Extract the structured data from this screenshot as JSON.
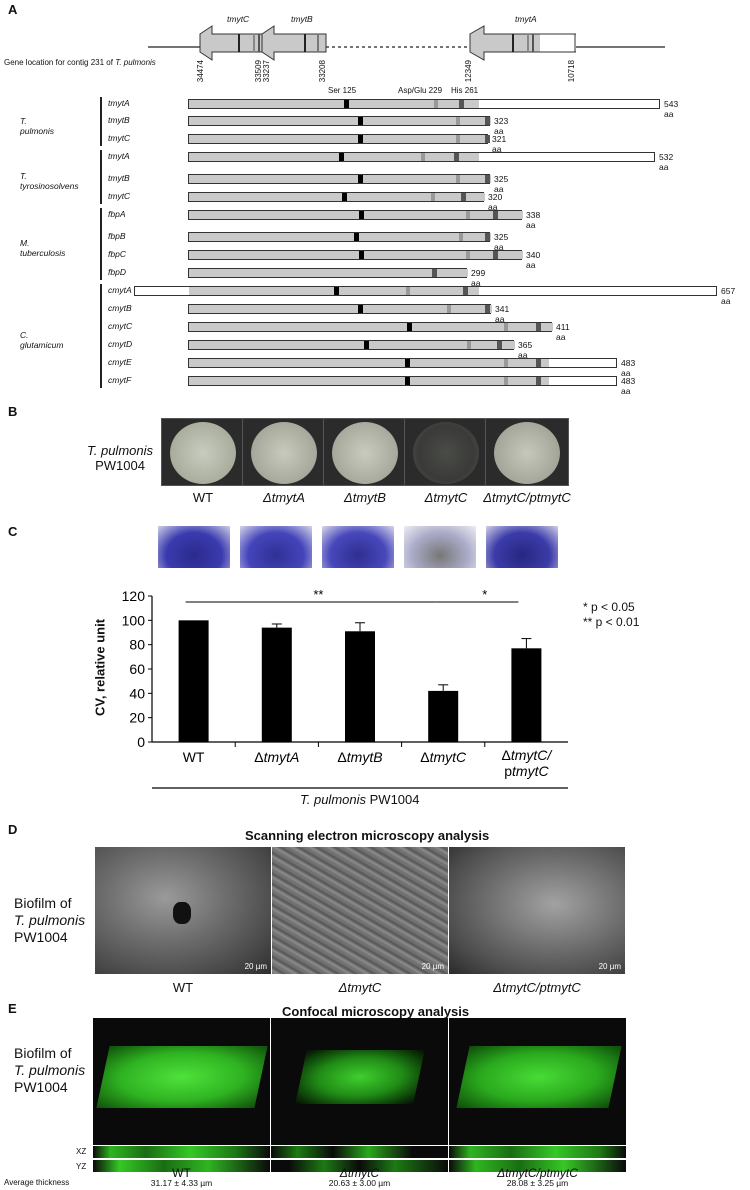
{
  "panelA": {
    "label": "A",
    "contig_caption_prefix": "Gene location for contig 231 of ",
    "contig_caption_species": "T. pulmonis",
    "contig_genes": [
      "tmytC",
      "tmytB",
      "tmytA"
    ],
    "coordinates": [
      "34474",
      "33509",
      "33237",
      "33208",
      "12349",
      "10718"
    ],
    "domain_labels": {
      "ser": "Ser 125",
      "asp": "Asp/Glu 229",
      "his": "His 261"
    },
    "groups": [
      {
        "organism": "T. pulmonis",
        "genes": [
          {
            "name": "tmytA",
            "length": "543 aa"
          },
          {
            "name": "tmytB",
            "length": "323 aa"
          },
          {
            "name": "tmytC",
            "length": "321 aa"
          }
        ]
      },
      {
        "organism": "T. tyrosinosolvens",
        "genes": [
          {
            "name": "tmytA",
            "length": "532 aa"
          },
          {
            "name": "tmytB",
            "length": "325 aa"
          },
          {
            "name": "tmytC",
            "length": "320 aa"
          }
        ]
      },
      {
        "organism": "M. tuberculosis",
        "genes": [
          {
            "name": "fbpA",
            "length": "338 aa"
          },
          {
            "name": "fbpB",
            "length": "325 aa"
          },
          {
            "name": "fbpC",
            "length": "340 aa"
          },
          {
            "name": "fbpD",
            "length": "299 aa"
          }
        ]
      },
      {
        "organism": "C. glutamicum",
        "genes": [
          {
            "name": "cmytA",
            "length": "657 aa"
          },
          {
            "name": "cmytB",
            "length": "341 aa"
          },
          {
            "name": "cmytC",
            "length": "411 aa"
          },
          {
            "name": "cmytD",
            "length": "365 aa"
          },
          {
            "name": "cmytE",
            "length": "483 aa"
          },
          {
            "name": "cmytF",
            "length": "483 aa"
          }
        ]
      }
    ]
  },
  "panelB": {
    "label": "B",
    "species": "T. pulmonis",
    "strain": "PW1004",
    "plates": [
      "WT",
      "ΔtmytA",
      "ΔtmytB",
      "ΔtmytC",
      "ΔtmytC/ptmytC"
    ]
  },
  "panelC": {
    "label": "C",
    "ylabel": "CV, relative unit",
    "xlabel_species": "T. pulmonis",
    "xlabel_strain": "PW1004",
    "sig1": "**",
    "sig2": "*",
    "legend1": "* p < 0.05",
    "legend2": "** p < 0.01"
  },
  "chart_data": {
    "type": "bar",
    "categories": [
      "WT",
      "ΔtmytA",
      "ΔtmytB",
      "ΔtmytC",
      "ΔtmytC/ptmytC"
    ],
    "values": [
      100,
      94,
      91,
      42,
      77
    ],
    "errors": [
      0,
      3,
      7,
      5,
      8
    ],
    "ylabel": "CV, relative unit",
    "xlabel": "T. pulmonis PW1004",
    "ylim": [
      0,
      120
    ],
    "yticks": [
      "0",
      "20",
      "40",
      "60",
      "80",
      "100",
      "120"
    ],
    "grid": false,
    "significance": [
      {
        "from": "WT",
        "to": "ΔtmytC",
        "label": "**"
      },
      {
        "from": "ΔtmytC",
        "to": "ΔtmytC/ptmytC",
        "label": "*"
      }
    ]
  },
  "panelD": {
    "label": "D",
    "title": "Scanning electron microscopy analysis",
    "side_line1": "Biofilm of",
    "side_line2": "T. pulmonis",
    "side_line3": "PW1004",
    "scale": "20 µm",
    "images": [
      "WT",
      "ΔtmytC",
      "ΔtmytC/ptmytC"
    ]
  },
  "panelE": {
    "label": "E",
    "title": "Confocal microscopy analysis",
    "side_line1": "Biofilm of",
    "side_line2": "T. pulmonis",
    "side_line3": "PW1004",
    "xz": "XZ",
    "yz": "YZ",
    "thickness_label": "Average thickness",
    "images": [
      {
        "name": "WT",
        "thickness": "31.17 ± 4.33 µm"
      },
      {
        "name": "ΔtmytC",
        "thickness": "20.63 ± 3.00 µm"
      },
      {
        "name": "ΔtmytC/ptmytC",
        "thickness": "28.08 ± 3.25 µm"
      }
    ]
  },
  "colors": {
    "bar": "#000000",
    "protein_grey": "#c9c9c9",
    "confocal_green": "#3bd42a"
  }
}
